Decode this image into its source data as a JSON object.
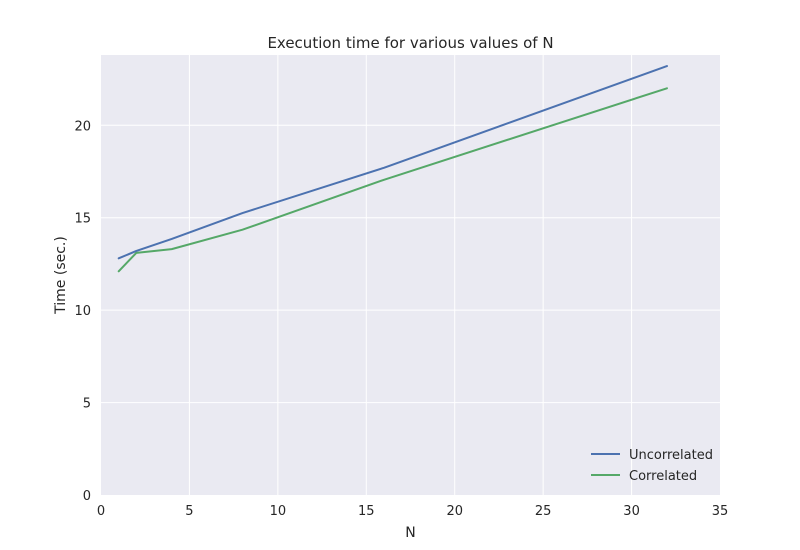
{
  "chart_data": {
    "type": "line",
    "title": "Execution time for various values of N",
    "xlabel": "N",
    "ylabel": "Time (sec.)",
    "xlim": [
      0,
      35
    ],
    "ylim": [
      0,
      23.8
    ],
    "xticks": [
      0,
      5,
      10,
      15,
      20,
      25,
      30,
      35
    ],
    "yticks": [
      0,
      5,
      10,
      15,
      20
    ],
    "grid": true,
    "legend_position": "lower-right",
    "background_color": "#eaeaf2",
    "grid_color": "#ffffff",
    "series": [
      {
        "name": "Uncorrelated",
        "color": "#4c72b0",
        "x": [
          1,
          2,
          4,
          8,
          16,
          32
        ],
        "y": [
          12.8,
          13.2,
          13.85,
          15.25,
          17.7,
          23.2
        ]
      },
      {
        "name": "Correlated",
        "color": "#55a868",
        "x": [
          1,
          2,
          4,
          8,
          16,
          32
        ],
        "y": [
          12.1,
          13.1,
          13.3,
          14.35,
          17.05,
          22.0
        ]
      }
    ]
  }
}
